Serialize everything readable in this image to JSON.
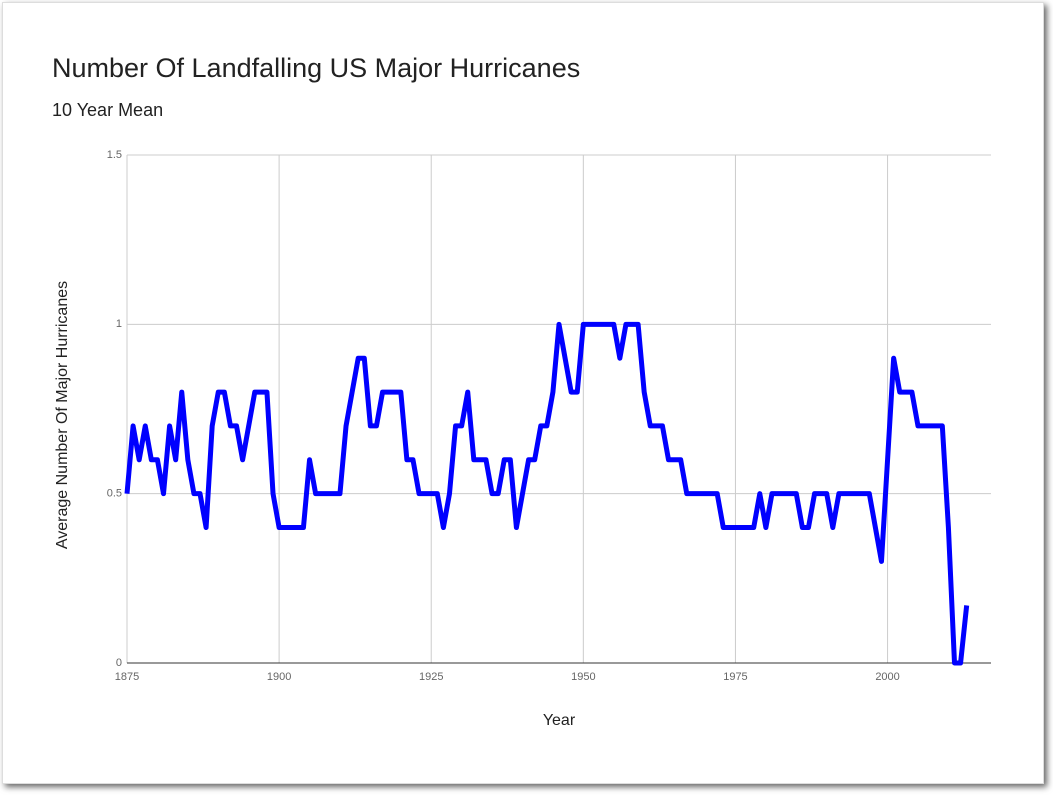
{
  "chart_data": {
    "type": "line",
    "title": "Number Of Landfalling US Major Hurricanes",
    "subtitle": "10 Year Mean",
    "x_label": "Year",
    "y_label": "Average Number Of Major Hurricanes",
    "x": [
      1875,
      1876,
      1877,
      1878,
      1879,
      1880,
      1881,
      1882,
      1883,
      1884,
      1885,
      1886,
      1887,
      1888,
      1889,
      1890,
      1891,
      1892,
      1893,
      1894,
      1895,
      1896,
      1897,
      1898,
      1899,
      1900,
      1901,
      1902,
      1903,
      1904,
      1905,
      1906,
      1907,
      1908,
      1909,
      1910,
      1911,
      1912,
      1913,
      1914,
      1915,
      1916,
      1917,
      1918,
      1919,
      1920,
      1921,
      1922,
      1923,
      1924,
      1925,
      1926,
      1927,
      1928,
      1929,
      1930,
      1931,
      1932,
      1933,
      1934,
      1935,
      1936,
      1937,
      1938,
      1939,
      1940,
      1941,
      1942,
      1943,
      1944,
      1945,
      1946,
      1947,
      1948,
      1949,
      1950,
      1951,
      1952,
      1953,
      1954,
      1955,
      1956,
      1957,
      1958,
      1959,
      1960,
      1961,
      1962,
      1963,
      1964,
      1965,
      1966,
      1967,
      1968,
      1969,
      1970,
      1971,
      1972,
      1973,
      1974,
      1975,
      1976,
      1977,
      1978,
      1979,
      1980,
      1981,
      1982,
      1983,
      1984,
      1985,
      1986,
      1987,
      1988,
      1989,
      1990,
      1991,
      1992,
      1993,
      1994,
      1995,
      1996,
      1997,
      1998,
      1999,
      2000,
      2001,
      2002,
      2003,
      2004,
      2005,
      2006,
      2007,
      2008,
      2009,
      2010,
      2011,
      2012,
      2013
    ],
    "series": [
      {
        "name": "Average Number Of Major Hurricanes",
        "color": "#0000ff",
        "values": [
          0.5,
          0.7,
          0.6,
          0.7,
          0.6,
          0.6,
          0.5,
          0.7,
          0.6,
          0.8,
          0.6,
          0.5,
          0.5,
          0.4,
          0.7,
          0.8,
          0.8,
          0.7,
          0.7,
          0.6,
          0.7,
          0.8,
          0.8,
          0.8,
          0.5,
          0.4,
          0.4,
          0.4,
          0.4,
          0.4,
          0.6,
          0.5,
          0.5,
          0.5,
          0.5,
          0.5,
          0.7,
          0.8,
          0.9,
          0.9,
          0.7,
          0.7,
          0.8,
          0.8,
          0.8,
          0.8,
          0.6,
          0.6,
          0.5,
          0.5,
          0.5,
          0.5,
          0.4,
          0.5,
          0.7,
          0.7,
          0.8,
          0.6,
          0.6,
          0.6,
          0.5,
          0.5,
          0.6,
          0.6,
          0.4,
          0.5,
          0.6,
          0.6,
          0.7,
          0.7,
          0.8,
          1.0,
          0.9,
          0.8,
          0.8,
          1.0,
          1.0,
          1.0,
          1.0,
          1.0,
          1.0,
          0.9,
          1.0,
          1.0,
          1.0,
          0.8,
          0.7,
          0.7,
          0.7,
          0.6,
          0.6,
          0.6,
          0.5,
          0.5,
          0.5,
          0.5,
          0.5,
          0.5,
          0.4,
          0.4,
          0.4,
          0.4,
          0.4,
          0.4,
          0.5,
          0.4,
          0.5,
          0.5,
          0.5,
          0.5,
          0.5,
          0.4,
          0.4,
          0.5,
          0.5,
          0.5,
          0.4,
          0.5,
          0.5,
          0.5,
          0.5,
          0.5,
          0.5,
          0.4,
          0.3,
          0.6,
          0.9,
          0.8,
          0.8,
          0.8,
          0.7,
          0.7,
          0.7,
          0.7,
          0.7,
          0.4,
          0,
          0,
          0.17
        ]
      }
    ],
    "xlim": [
      1875,
      2017
    ],
    "xticks": [
      1875,
      1900,
      1925,
      1950,
      1975,
      2000
    ],
    "ylim": [
      0,
      1.5
    ],
    "yticks": [
      0,
      0.5,
      1,
      1.5
    ],
    "grid": true
  }
}
